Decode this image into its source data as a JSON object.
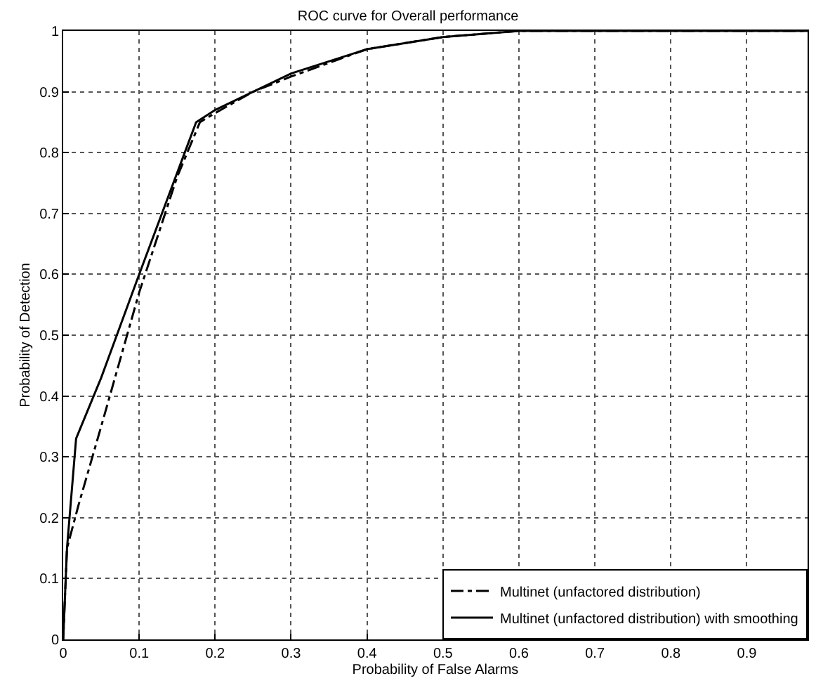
{
  "chart_data": {
    "type": "line",
    "title": "ROC curve for Overall performance",
    "xlabel": "Probability of False Alarms",
    "ylabel": "Probability of Detection",
    "xlim": [
      0,
      0.98
    ],
    "xticks": [
      0,
      0.1,
      0.2,
      0.3,
      0.4,
      0.5,
      0.6,
      0.7,
      0.8,
      0.9
    ],
    "ylim": [
      0,
      1
    ],
    "yticks": [
      0,
      0.1,
      0.2,
      0.3,
      0.4,
      0.5,
      0.6,
      0.7,
      0.8,
      0.9,
      1
    ],
    "grid": true,
    "legend": "bottom right",
    "marker": "none",
    "series": [
      {
        "name": "Multinet (unfactored distribution)",
        "color": "#000000",
        "line_style": "dashed",
        "x": [
          0,
          0.005,
          0.02,
          0.05,
          0.1,
          0.15,
          0.18,
          0.2,
          0.25,
          0.3,
          0.4,
          0.5,
          0.6,
          0.98
        ],
        "values": [
          0,
          0.15,
          0.22,
          0.35,
          0.57,
          0.76,
          0.85,
          0.865,
          0.9,
          0.925,
          0.97,
          0.99,
          1.0,
          1.0
        ]
      },
      {
        "name": "Multinet (unfactored distribution) with smoothing",
        "color": "#000000",
        "line_style": "solid",
        "x": [
          0,
          0.005,
          0.017,
          0.05,
          0.1,
          0.175,
          0.2,
          0.3,
          0.4,
          0.5,
          0.6,
          0.98
        ],
        "values": [
          0,
          0.15,
          0.33,
          0.43,
          0.6,
          0.85,
          0.87,
          0.93,
          0.97,
          0.99,
          1.0,
          1.0
        ]
      }
    ]
  }
}
